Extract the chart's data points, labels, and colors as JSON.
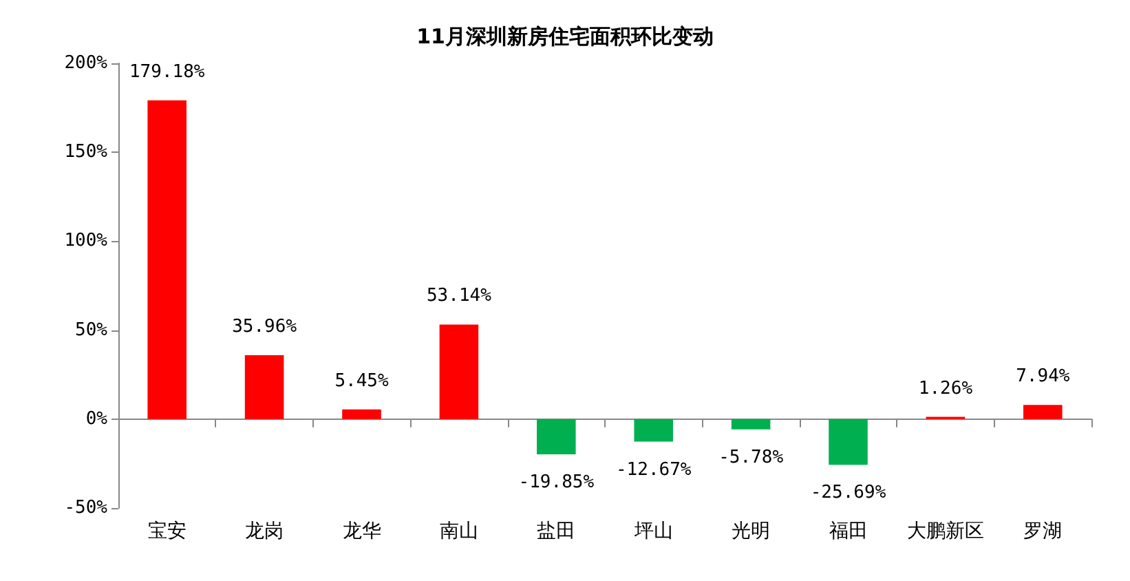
{
  "chart_data": {
    "type": "bar",
    "title": "11月深圳新房住宅面积环比变动",
    "categories": [
      "宝安",
      "龙岗",
      "龙华",
      "南山",
      "盐田",
      "坪山",
      "光明",
      "福田",
      "大鹏新区",
      "罗湖"
    ],
    "values": [
      179.18,
      35.96,
      5.45,
      53.14,
      -19.85,
      -12.67,
      -5.78,
      -25.69,
      1.26,
      7.94
    ],
    "colors": [
      "#ff0000",
      "#ff0000",
      "#ff0000",
      "#ff0000",
      "#00b050",
      "#00b050",
      "#00b050",
      "#00b050",
      "#ff0000",
      "#ff0000"
    ],
    "value_labels": [
      "179.18%",
      "35.96%",
      "5.45%",
      "53.14%",
      "-19.85%",
      "-12.67%",
      "-5.78%",
      "-25.69%",
      "1.26%",
      "7.94%"
    ],
    "ylim": [
      -50,
      200
    ],
    "yticks": [
      {
        "value": -50,
        "label": "-50%"
      },
      {
        "value": 0,
        "label": "0%"
      },
      {
        "value": 50,
        "label": "50%"
      },
      {
        "value": 100,
        "label": "100%"
      },
      {
        "value": 150,
        "label": "150%"
      },
      {
        "value": 200,
        "label": "200%"
      }
    ]
  }
}
